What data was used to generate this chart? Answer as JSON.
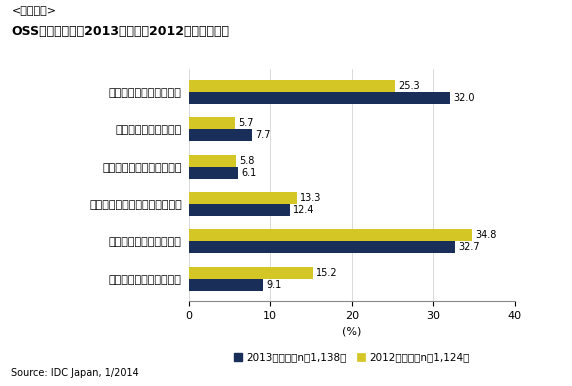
{
  "super_title": "<参考資料>",
  "title": "OSSの導入状況：2013年調査と2012年調査の比較",
  "categories": [
    "本番環境で導入している",
    "試験的に導入している",
    "導入に向けて検証している",
    "これから導入の検討をしていく",
    "導入する予定は全くない",
    "今後の予定は分からない"
  ],
  "values_2013": [
    32.0,
    7.7,
    6.1,
    12.4,
    32.7,
    9.1
  ],
  "values_2012": [
    25.3,
    5.7,
    5.8,
    13.3,
    34.8,
    15.2
  ],
  "color_2013": "#1a2e5a",
  "color_2012": "#d4c625",
  "xlabel": "(%)",
  "xlim": [
    0,
    40
  ],
  "xticks": [
    0,
    10,
    20,
    30,
    40
  ],
  "legend_2013_label": "2013年調査（n＝1,138）",
  "legend_2012_label": "2012年調査（n＝1,124）",
  "source": "Source: IDC Japan, 1/2014",
  "bar_height": 0.32
}
